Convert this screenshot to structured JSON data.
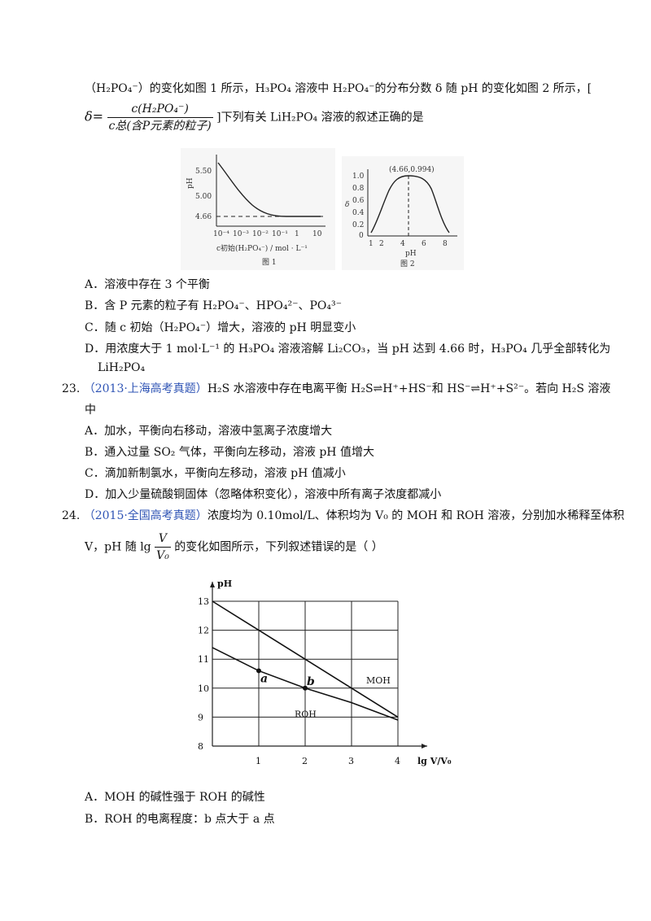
{
  "q22": {
    "line1": "（H₂PO₄⁻）的变化如图 1 所示，H₃PO₄ 溶液中 H₂PO₄⁻的分布分数 δ 随 pH 的变化如图 2 所示，[",
    "delta_prefix": "δ=",
    "frac_num": "c(H₂PO₄⁻)",
    "frac_den": "c总(含P元素的粒子)",
    "line2_tail": "]下列有关 LiH₂PO₄ 溶液的叙述正确的是",
    "options": [
      "A．溶液中存在 3 个平衡",
      "B．含 P 元素的粒子有 H₂PO₄⁻、HPO₄²⁻、PO₄³⁻",
      "C．随 c 初始（H₂PO₄⁻）增大，溶液的 pH 明显变小",
      "D．用浓度大于 1 mol·L⁻¹ 的 H₃PO₄ 溶液溶解 Li₂CO₃，当 pH 达到 4.66 时，H₃PO₄ 几乎全部转化为",
      "LiH₂PO₄"
    ],
    "fig1": {
      "y_axis": "pH",
      "y_ticks": [
        "5.50",
        "5.00",
        "4.66"
      ],
      "x_ticks": [
        "10⁻⁴",
        "10⁻³",
        "10⁻²",
        "10⁻¹",
        "1",
        "10"
      ],
      "x_label": "c初始(H₂PO₄⁻) / mol · L⁻¹",
      "caption": "图 1"
    },
    "fig2": {
      "y_axis": "δ",
      "y_ticks": [
        "1.0",
        "0.8",
        "0.6",
        "0.4",
        "0.2",
        "0"
      ],
      "x_ticks": [
        "1",
        "2",
        "4",
        "6",
        "8"
      ],
      "x_label": "pH",
      "peak_label": "(4.66,0.994)",
      "caption": "图 2"
    }
  },
  "q23": {
    "number": "23.",
    "tag": "（2013·上海高考真题）",
    "text": "H₂S 水溶液中存在电离平衡 H₂S⇌H⁺+HS⁻和 HS⁻⇌H⁺+S²⁻。若向 H₂S 溶液",
    "text2": "中",
    "options": [
      "A．加水，平衡向右移动，溶液中氢离子浓度增大",
      "B．通入过量 SO₂ 气体，平衡向左移动，溶液 pH 值增大",
      "C．滴加新制氯水，平衡向左移动，溶液 pH 值减小",
      "D．加入少量硫酸铜固体（忽略体积变化），溶液中所有离子浓度都减小"
    ]
  },
  "q24": {
    "number": "24.",
    "tag": "（2015·全国高考真题）",
    "text": "浓度均为 0.10mol/L、体积均为 V₀ 的 MOH 和 ROH 溶液，分别加水稀释至体积",
    "line2_pre": "V，pH 随",
    "lg": "lg",
    "frac_num": "V",
    "frac_den": "V₀",
    "line2_post": "的变化如图所示，下列叙述错误的是（ ）",
    "options": [
      "A．MOH 的碱性强于 ROH 的碱性",
      "B．ROH 的电离程度：b 点大于 a 点"
    ]
  },
  "chart_data": [
    {
      "type": "line",
      "title": "图 1",
      "xlabel": "c初始(H₂PO₄⁻) / mol · L⁻¹",
      "ylabel": "pH",
      "x_scale": "log",
      "x": [
        0.0001,
        0.001,
        0.01,
        0.1,
        1,
        10
      ],
      "series": [
        {
          "values": [
            5.6,
            5.1,
            4.8,
            4.7,
            4.67,
            4.66
          ]
        }
      ],
      "reference_line": 4.66,
      "ylim": [
        4.4,
        5.7
      ]
    },
    {
      "type": "line",
      "title": "图 2",
      "xlabel": "pH",
      "ylabel": "δ",
      "x": [
        0.5,
        1,
        2,
        3,
        4,
        4.66,
        6,
        7,
        8,
        9
      ],
      "series": [
        {
          "values": [
            0.03,
            0.15,
            0.48,
            0.86,
            0.98,
            0.994,
            0.98,
            0.88,
            0.4,
            0.06
          ]
        }
      ],
      "annotation": "(4.66,0.994)",
      "ylim": [
        0,
        1.0
      ],
      "xlim": [
        0.5,
        9.5
      ]
    },
    {
      "type": "line",
      "xlabel": "lg V/V₀",
      "ylabel": "pH",
      "x": [
        0,
        1,
        2,
        3,
        4
      ],
      "series": [
        {
          "name": "MOH",
          "values": [
            13,
            12,
            11,
            10,
            9
          ]
        },
        {
          "name": "ROH",
          "values": [
            11.4,
            10.6,
            10.0,
            9.5,
            8.9
          ]
        }
      ],
      "points": [
        {
          "label": "a",
          "x": 1,
          "y": 10.6
        },
        {
          "label": "b",
          "x": 2,
          "y": 10.0
        }
      ],
      "xlim": [
        0,
        4
      ],
      "ylim": [
        8,
        13
      ],
      "grid": true
    }
  ]
}
